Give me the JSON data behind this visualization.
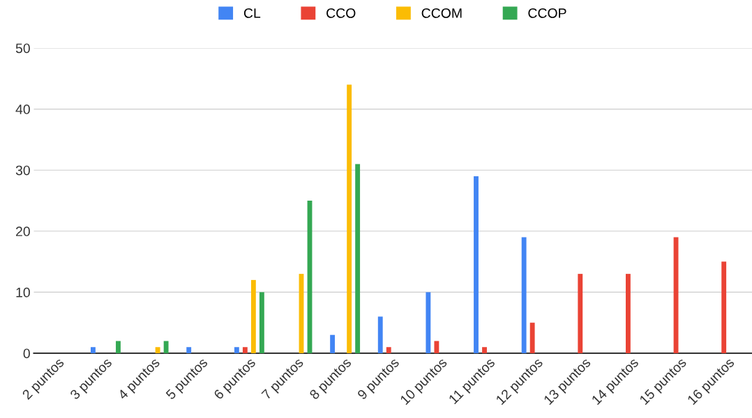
{
  "chart_data": {
    "type": "bar",
    "categories": [
      "2 puntos",
      "3 puntos",
      "4 puntos",
      "5 puntos",
      "6 puntos",
      "7 puntos",
      "8 puntos",
      "9 puntos",
      "10 puntos",
      "11 puntos",
      "12 puntos",
      "13 puntos",
      "14 puntos",
      "15 puntos",
      "16 puntos"
    ],
    "series": [
      {
        "name": "CL",
        "color": "#4285f4",
        "values": [
          null,
          1,
          null,
          1,
          1,
          null,
          3,
          6,
          10,
          29,
          19,
          null,
          null,
          null,
          null
        ]
      },
      {
        "name": "CCO",
        "color": "#ea4335",
        "values": [
          null,
          null,
          null,
          null,
          1,
          null,
          null,
          1,
          2,
          1,
          5,
          13,
          13,
          19,
          15
        ]
      },
      {
        "name": "CCOM",
        "color": "#fbbc04",
        "values": [
          null,
          null,
          1,
          null,
          12,
          13,
          44,
          null,
          null,
          null,
          null,
          null,
          null,
          null,
          null
        ]
      },
      {
        "name": "CCOP",
        "color": "#34a853",
        "values": [
          null,
          2,
          2,
          null,
          10,
          25,
          31,
          null,
          null,
          null,
          null,
          null,
          null,
          null,
          null
        ]
      }
    ],
    "ylim": [
      0,
      50
    ],
    "yticks": [
      0,
      10,
      20,
      30,
      40,
      50
    ],
    "grid": "y",
    "legend": "top"
  }
}
